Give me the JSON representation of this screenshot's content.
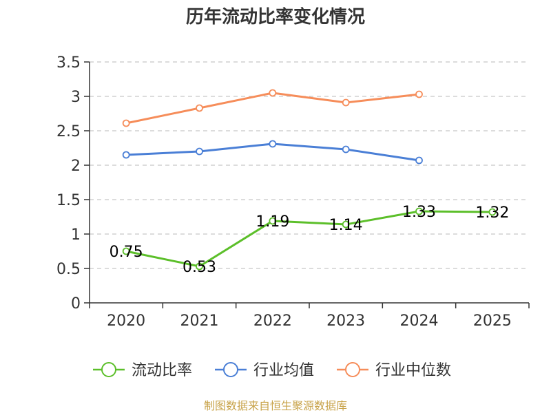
{
  "chart_data": {
    "type": "line",
    "title": "历年流动比率变化情况",
    "xlabel": "",
    "ylabel": "",
    "categories": [
      "2020",
      "2021",
      "2022",
      "2023",
      "2024",
      "2025"
    ],
    "ylim": [
      0,
      3.5
    ],
    "yticks": [
      "0",
      "0.5",
      "1",
      "1.5",
      "2",
      "2.5",
      "3",
      "3.5"
    ],
    "grid": true,
    "legend_position": "bottom",
    "series": [
      {
        "name": "流动比率",
        "color": "#5cbf2a",
        "values": [
          0.75,
          0.53,
          1.19,
          1.14,
          1.33,
          1.32
        ],
        "labels": [
          "0.75",
          "0.53",
          "1.19",
          "1.14",
          "1.33",
          "1.32"
        ]
      },
      {
        "name": "行业均值",
        "color": "#4a7fd6",
        "values": [
          2.15,
          2.2,
          2.31,
          2.23,
          2.07,
          null
        ]
      },
      {
        "name": "行业中位数",
        "color": "#f68d5a",
        "values": [
          2.61,
          2.83,
          3.05,
          2.91,
          3.03,
          null
        ]
      }
    ],
    "source": "制图数据来自恒生聚源数据库"
  }
}
